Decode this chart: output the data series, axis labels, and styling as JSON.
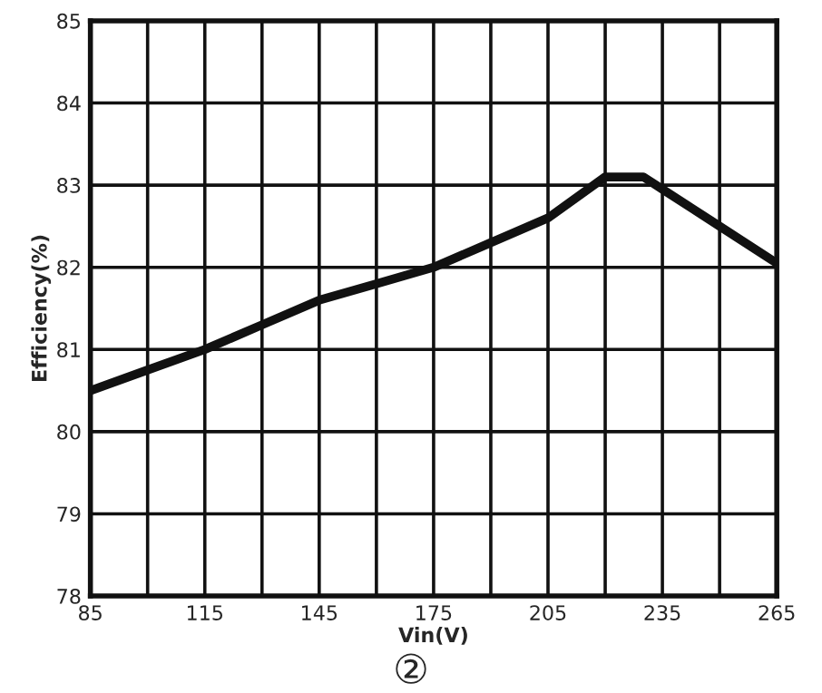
{
  "chart_data": {
    "type": "line",
    "xlabel": "Vin(V)",
    "ylabel": "Efficiency(%)",
    "annotations": [
      "②"
    ],
    "x": [
      85,
      100,
      115,
      130,
      145,
      160,
      175,
      190,
      205,
      220,
      230,
      235,
      250,
      265
    ],
    "series": [
      {
        "color": "#111111",
        "values": [
          80.5,
          80.75,
          81.0,
          81.3,
          81.6,
          81.8,
          82.0,
          82.3,
          82.6,
          83.1,
          83.1,
          82.95,
          82.5,
          82.05
        ]
      }
    ],
    "xlim": [
      85,
      265
    ],
    "ylim": [
      78,
      85
    ],
    "xticks": [
      85,
      {
        "value": 100,
        "label": null
      },
      115,
      {
        "value": 130,
        "label": null
      },
      145,
      {
        "value": 160,
        "label": null
      },
      175,
      {
        "value": 190,
        "label": null
      },
      205,
      {
        "value": 220,
        "label": null
      },
      235,
      {
        "value": 250,
        "label": null
      },
      265
    ],
    "yticks": [
      78,
      79,
      80,
      81,
      82,
      83,
      84,
      85
    ],
    "grid": true,
    "marker": "none",
    "line_style": "solid"
  }
}
